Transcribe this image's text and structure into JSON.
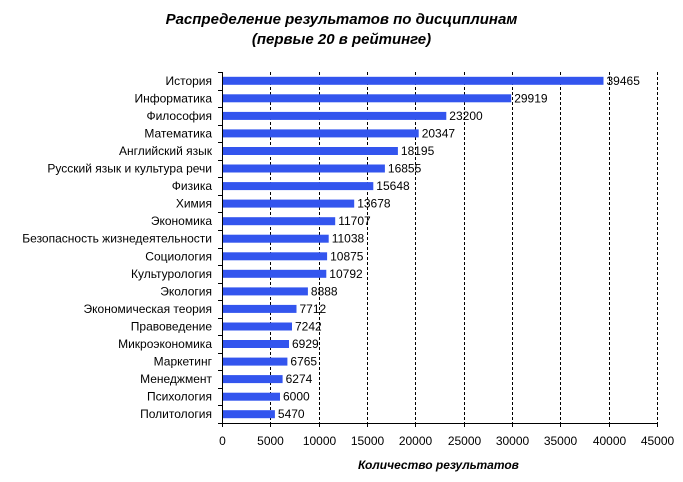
{
  "chart_data": {
    "type": "bar",
    "orientation": "horizontal",
    "title_lines": [
      "Распределение результатов по дисциплинам",
      "(первые 20 в рейтинге)"
    ],
    "xlabel": "Количество результатов",
    "ylabel": "",
    "xlim": [
      0,
      45000
    ],
    "x_ticks": [
      0,
      5000,
      10000,
      15000,
      20000,
      25000,
      30000,
      35000,
      40000,
      45000
    ],
    "grid": "vertical dashed",
    "legend": "none",
    "bar_color": "#3355ee",
    "categories": [
      "История",
      "Информатика",
      "Философия",
      "Математика",
      "Английский язык",
      "Русский язык и культура речи",
      "Физика",
      "Химия",
      "Экономика",
      "Безопасность жизнедеятельности",
      "Социология",
      "Культурология",
      "Экология",
      "Экономическая теория",
      "Правоведение",
      "Микроэкономика",
      "Маркетинг",
      "Менеджмент",
      "Психология",
      "Политология"
    ],
    "values": [
      39465,
      29919,
      23200,
      20347,
      18195,
      16855,
      15648,
      13678,
      11707,
      11038,
      10875,
      10792,
      8888,
      7712,
      7242,
      6929,
      6765,
      6274,
      6000,
      5470
    ]
  }
}
